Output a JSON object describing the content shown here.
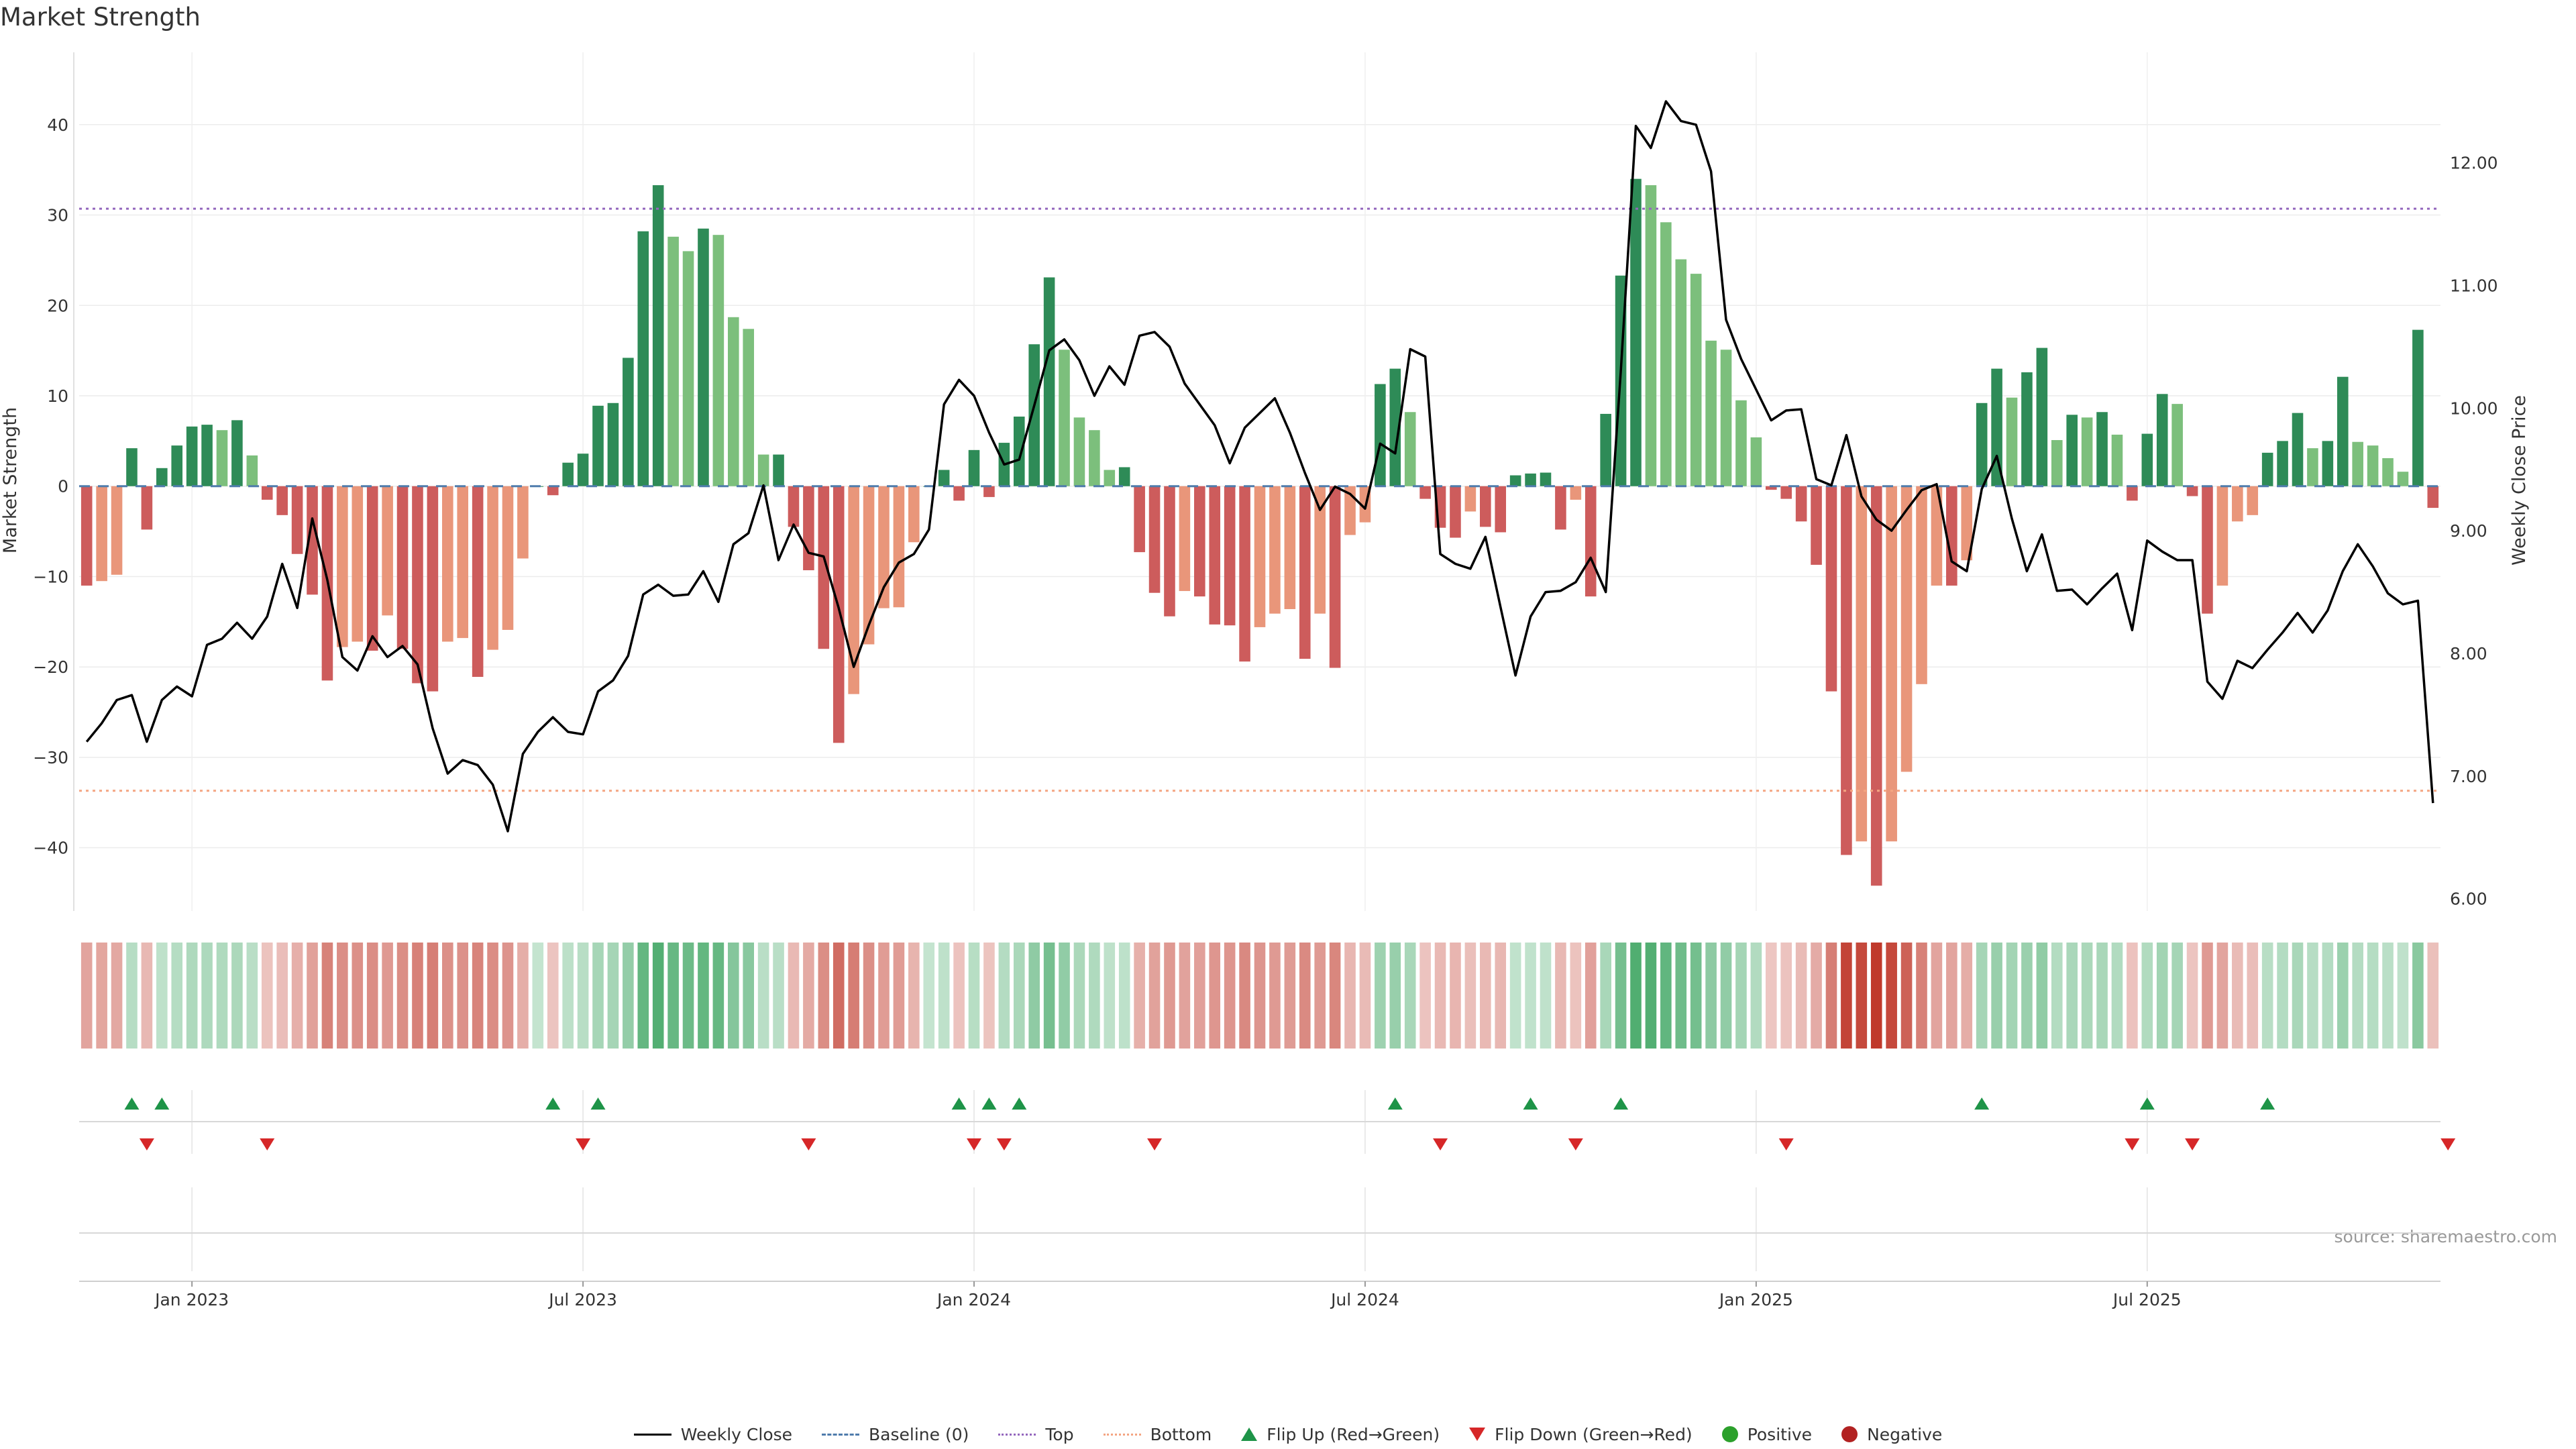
{
  "chart_data": {
    "type": "bar+line",
    "title": "Market Strength",
    "ylabel_left": "Market Strength",
    "ylabel_right": "Weekly Close Price",
    "ylim_left": [
      -47,
      48
    ],
    "ylim_right": [
      5.9,
      12.9
    ],
    "yticks_left": [
      "40",
      "30",
      "20",
      "10",
      "0",
      "−10",
      "−20",
      "−30",
      "−40"
    ],
    "yticks_right": [
      "12.00",
      "11.00",
      "10.00",
      "9.00",
      "8.00",
      "7.00",
      "6.00"
    ],
    "xticks": [
      "Jan 2023",
      "Jul 2023",
      "Jan 2024",
      "Jul 2024",
      "Jan 2025",
      "Jul 2025"
    ],
    "xtick_week_index": [
      7,
      33,
      59,
      85,
      111,
      137
    ],
    "top_threshold": 30.7,
    "bottom_threshold": -33.7,
    "strength": [
      -11,
      -10.5,
      -9.8,
      4.2,
      -4.8,
      2,
      4.5,
      6.6,
      6.8,
      6.2,
      7.3,
      3.4,
      -1.5,
      -3.2,
      -7.5,
      -12,
      -21.5,
      -17.8,
      -17.2,
      -18.2,
      -14.3,
      -18,
      -21.8,
      -22.7,
      -17.2,
      -16.8,
      -21.1,
      -18.1,
      -15.9,
      -8,
      0,
      -1,
      2.6,
      3.6,
      8.9,
      9.2,
      14.2,
      28.2,
      33.3,
      27.6,
      26,
      28.5,
      27.8,
      18.7,
      17.4,
      3.5,
      3.5,
      -4.5,
      -9.3,
      -18,
      -28.4,
      -23,
      -17.5,
      -13.5,
      -13.4,
      -6.2,
      0,
      1.8,
      -1.6,
      4,
      -1.2,
      4.8,
      7.7,
      15.7,
      23.1,
      15.1,
      7.6,
      6.2,
      1.8,
      2.1,
      -7.3,
      -11.8,
      -14.4,
      -11.6,
      -12.2,
      -15.3,
      -15.4,
      -19.4,
      -15.6,
      -14.1,
      -13.6,
      -19.1,
      -14.1,
      -20.1,
      -5.4,
      -4,
      11.3,
      13,
      8.2,
      -1.4,
      -4.6,
      -5.7,
      -2.8,
      -4.5,
      -5.1,
      1.2,
      1.4,
      1.5,
      -4.8,
      -1.5,
      -12.2,
      8,
      23.3,
      34,
      33.3,
      29.2,
      25.1,
      23.5,
      16.1,
      15.1,
      9.5,
      5.4,
      -0.4,
      -1.4,
      -3.9,
      -8.7,
      -22.7,
      -40.8,
      -39.3,
      -44.2,
      -39.3,
      -31.6,
      -21.9,
      -11,
      -11,
      -8.2,
      9.2,
      13,
      9.8,
      12.6,
      15.3,
      5.1,
      7.9,
      7.6,
      8.2,
      5.7,
      -1.6,
      5.8,
      10.2,
      9.1,
      -1.1,
      -14.1,
      -11,
      -3.9,
      -3.2,
      3.7,
      5,
      8.1,
      4.2,
      5,
      12.1,
      4.9,
      4.5,
      3.1,
      1.6,
      17.3,
      -2.4
    ],
    "weekly_close": [
      7.28,
      7.43,
      7.62,
      7.66,
      7.28,
      7.62,
      7.73,
      7.65,
      8.07,
      8.12,
      8.25,
      8.12,
      8.3,
      8.73,
      8.37,
      9.1,
      8.6,
      7.97,
      7.86,
      8.14,
      7.97,
      8.06,
      7.91,
      7.39,
      7.02,
      7.13,
      7.09,
      6.93,
      6.55,
      7.18,
      7.36,
      7.48,
      7.36,
      7.34,
      7.69,
      7.78,
      7.98,
      8.48,
      8.56,
      8.47,
      8.48,
      8.67,
      8.42,
      8.89,
      8.98,
      9.37,
      8.76,
      9.05,
      8.82,
      8.79,
      8.37,
      7.89,
      8.23,
      8.54,
      8.74,
      8.81,
      9.01,
      10.03,
      10.23,
      10.1,
      9.8,
      9.54,
      9.58,
      10.02,
      10.47,
      10.56,
      10.39,
      10.1,
      10.34,
      10.19,
      10.59,
      10.62,
      10.5,
      10.2,
      10.03,
      9.86,
      9.55,
      9.84,
      9.96,
      10.08,
      9.8,
      9.47,
      9.17,
      9.36,
      9.3,
      9.18,
      9.71,
      9.63,
      10.48,
      10.42,
      8.81,
      8.73,
      8.69,
      8.95,
      8.38,
      7.82,
      8.3,
      8.5,
      8.51,
      8.58,
      8.78,
      8.5,
      10.3,
      12.3,
      12.12,
      12.5,
      12.34,
      12.31,
      11.93,
      10.72,
      10.4,
      10.15,
      9.9,
      9.98,
      9.99,
      9.42,
      9.37,
      9.78,
      9.28,
      9.09,
      9.0,
      9.17,
      9.33,
      9.38,
      8.75,
      8.67,
      9.34,
      9.61,
      9.1,
      8.67,
      8.97,
      8.51,
      8.52,
      8.4,
      8.53,
      8.65,
      8.19,
      8.92,
      8.83,
      8.76,
      8.76,
      7.77,
      7.63,
      7.94,
      7.88,
      8.03,
      8.17,
      8.33,
      8.17,
      8.35,
      8.67,
      8.89,
      8.71,
      8.49,
      8.4,
      8.43,
      6.78
    ],
    "flip_up_weeks": [
      3,
      5,
      31,
      34,
      58,
      60,
      62,
      87,
      96,
      102,
      126,
      137,
      145
    ],
    "flip_down_weeks": [
      4,
      12,
      33,
      48,
      59,
      61,
      71,
      90,
      99,
      113,
      136,
      140,
      157
    ],
    "source_note": "source: sharemaestro.com",
    "colors": {
      "pos_strong": "#2e8b57",
      "pos_light": "#7cbf7c",
      "neg_strong": "#cd5c5c",
      "neg_light": "#e9967a",
      "line": "#000000",
      "top": "#9467bd",
      "bottom": "#f4a582",
      "baseline": "#4f7cac",
      "flip_up": "#1e9448",
      "flip_down": "#d62728",
      "positive_dot": "#2ca02c",
      "negative_dot": "#b22222"
    }
  },
  "legend": {
    "weekly_close": "Weekly Close",
    "baseline": "Baseline (0)",
    "top": "Top",
    "bottom": "Bottom",
    "flip_up": "Flip Up (Red→Green)",
    "flip_down": "Flip Down (Green→Red)",
    "positive": "Positive",
    "negative": "Negative"
  }
}
